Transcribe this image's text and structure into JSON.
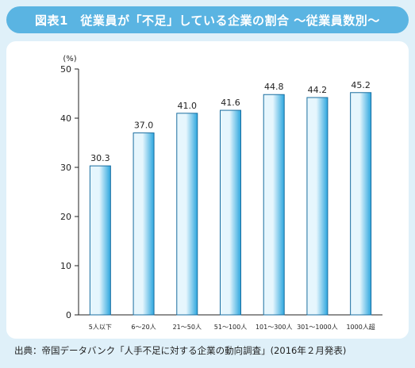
{
  "header": {
    "title": "図表1　従業員が「不足」している企業の割合 ～従業員数別～"
  },
  "footer": {
    "source": "出典：帝国データバンク「人手不足に対する企業の動向調査」(2016年２月発表)"
  },
  "colors": {
    "title_bar": "#5ab4e2",
    "bar_light": "#e6f6fd",
    "bar_dark": "#2ca6de",
    "bar_stroke": "#1a6ea0"
  },
  "chart_data": {
    "type": "bar",
    "title": "",
    "xlabel": "",
    "ylabel": "(%)",
    "ylim": [
      0,
      50
    ],
    "yticks": [
      0,
      10,
      20,
      30,
      40,
      50
    ],
    "grid": false,
    "categories": [
      "5人以下",
      "6～20人",
      "21～50人",
      "51～100人",
      "101～300人",
      "301～1000人",
      "1000人超"
    ],
    "values": [
      30.3,
      37.0,
      41.0,
      41.6,
      44.8,
      44.2,
      45.2
    ],
    "value_labels": [
      "30.3",
      "37.0",
      "41.0",
      "41.6",
      "44.8",
      "44.2",
      "45.2"
    ]
  }
}
